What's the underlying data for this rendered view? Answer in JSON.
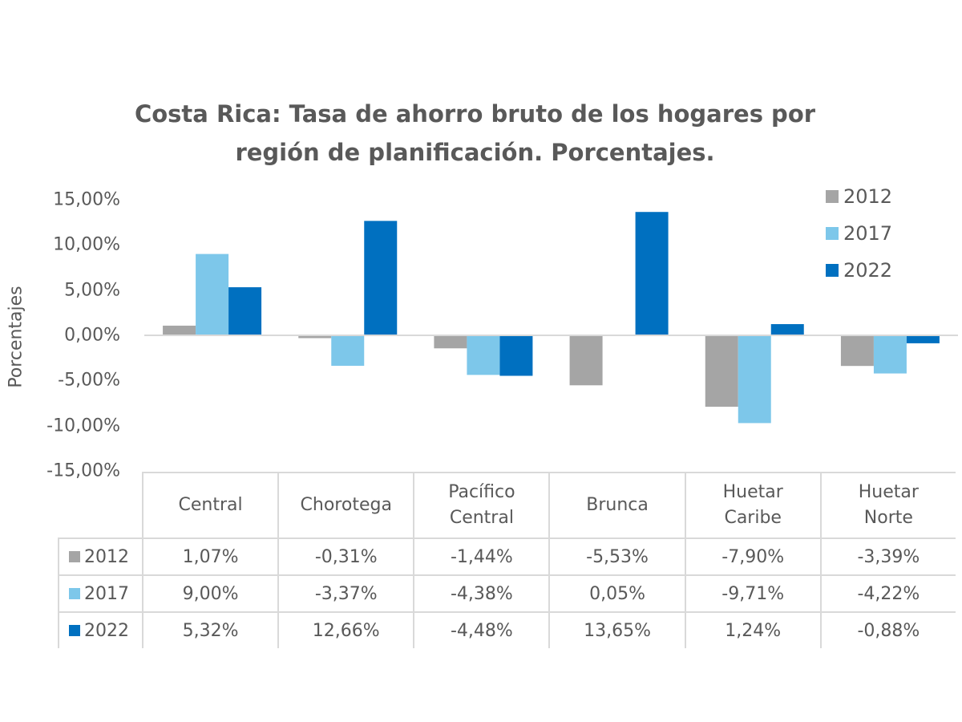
{
  "chart_data": {
    "type": "bar",
    "title": [
      "Costa Rica: Tasa de ahorro bruto de los hogares por",
      "región de planificación. Porcentajes."
    ],
    "xlabel": "",
    "ylabel": "Porcentajes",
    "ylim": [
      -15,
      15
    ],
    "yticks": [
      15,
      10,
      5,
      0,
      -5,
      -10,
      -15
    ],
    "ytick_labels": [
      "15,00%",
      "10,00%",
      "5,00%",
      "0,00%",
      "-5,00%",
      "-10,00%",
      "-15,00%"
    ],
    "grid": false,
    "legend_position": "top-right",
    "categories": [
      "Central",
      "Chorotega",
      "Pacífico Central",
      "Brunca",
      "Huetar Caribe",
      "Huetar Norte"
    ],
    "category_lines": [
      [
        "Central"
      ],
      [
        "Chorotega"
      ],
      [
        "Pacífico",
        "Central"
      ],
      [
        "Brunca"
      ],
      [
        "Huetar",
        "Caribe"
      ],
      [
        "Huetar",
        "Norte"
      ]
    ],
    "series": [
      {
        "name": "2012",
        "color": "#a5a5a5",
        "values": [
          1.07,
          -0.31,
          -1.44,
          -5.53,
          -7.9,
          -3.39
        ],
        "labels": [
          "1,07%",
          "-0,31%",
          "-1,44%",
          "-5,53%",
          "-7,90%",
          "-3,39%"
        ]
      },
      {
        "name": "2017",
        "color": "#7dc7ea",
        "values": [
          9.0,
          -3.37,
          -4.38,
          0.05,
          -9.71,
          -4.22
        ],
        "labels": [
          "9,00%",
          "-3,37%",
          "-4,38%",
          "0,05%",
          "-9,71%",
          "-4,22%"
        ]
      },
      {
        "name": "2022",
        "color": "#0070c0",
        "values": [
          5.32,
          12.66,
          -4.48,
          13.65,
          1.24,
          -0.88
        ],
        "labels": [
          "5,32%",
          "12,66%",
          "-4,48%",
          "13,65%",
          "1,24%",
          "-0,88%"
        ]
      }
    ],
    "data_table": true
  }
}
